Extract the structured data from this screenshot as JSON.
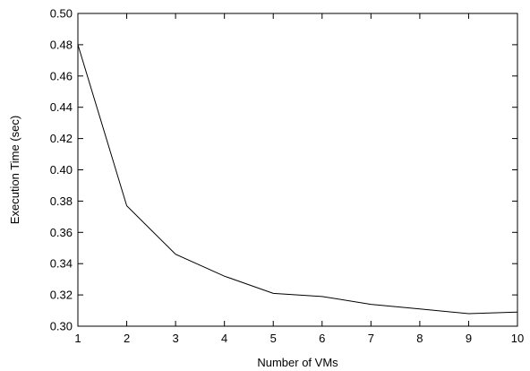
{
  "chart_data": {
    "type": "line",
    "title": "",
    "xlabel": "Number of VMs",
    "ylabel": "Execution Time (sec)",
    "x": [
      1,
      2,
      3,
      4,
      5,
      6,
      7,
      8,
      9,
      10
    ],
    "series": [
      {
        "values": [
          0.48,
          0.377,
          0.346,
          0.332,
          0.321,
          0.319,
          0.314,
          0.311,
          0.308,
          0.309
        ],
        "color": "#000000"
      }
    ],
    "xlim": [
      1,
      10
    ],
    "ylim": [
      0.3,
      0.5
    ],
    "xticks": [
      "1",
      "2",
      "3",
      "4",
      "5",
      "6",
      "7",
      "8",
      "9",
      "10"
    ],
    "yticks": [
      "0.30",
      "0.32",
      "0.34",
      "0.36",
      "0.38",
      "0.40",
      "0.42",
      "0.44",
      "0.46",
      "0.48",
      "0.50"
    ],
    "grid": false,
    "legend": "none"
  }
}
